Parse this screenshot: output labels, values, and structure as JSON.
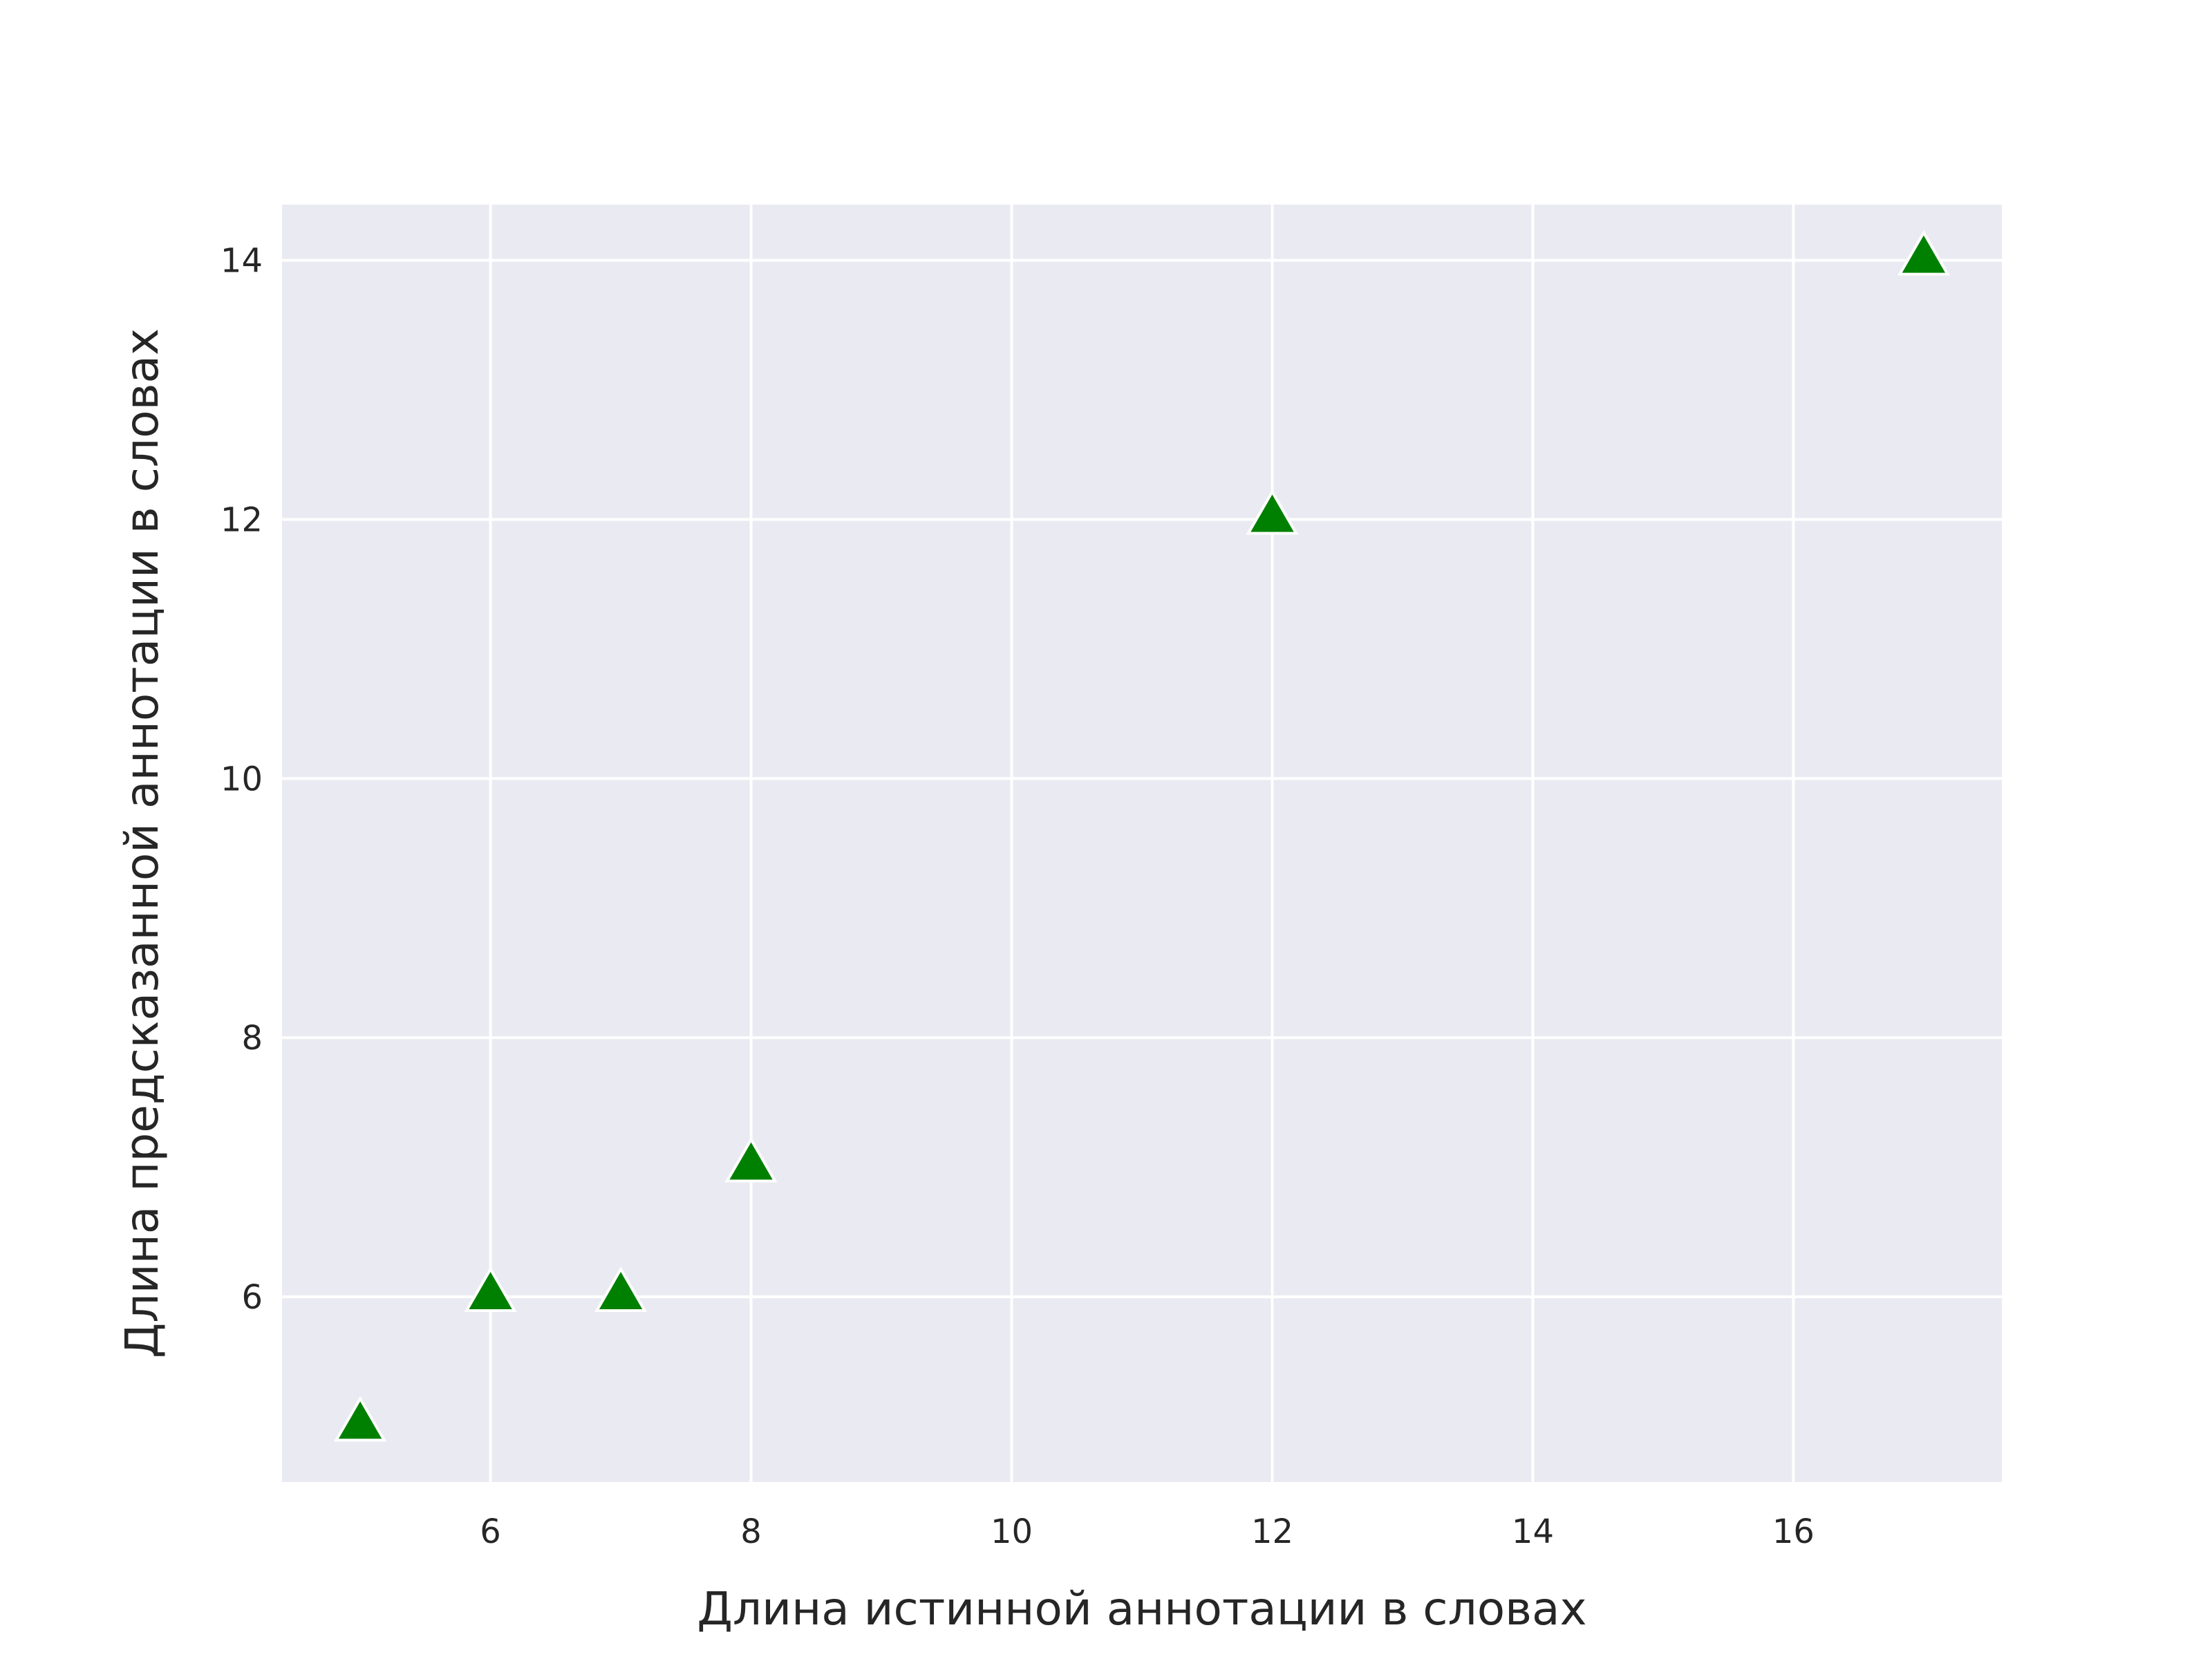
{
  "chart_data": {
    "type": "scatter",
    "title": "",
    "xlabel": "Длина истинной аннотации в словах",
    "ylabel": "Длина предсказанной аннотации в словах",
    "xlim": [
      4.4,
      17.6
    ],
    "ylim": [
      4.57,
      14.43
    ],
    "xticks": [
      6,
      8,
      10,
      12,
      14,
      16
    ],
    "yticks": [
      6,
      8,
      10,
      12,
      14
    ],
    "grid": true,
    "legend": "none",
    "marker": "triangle-up",
    "series": [
      {
        "color": "#008000",
        "edgecolor": "#ffffff",
        "points": [
          {
            "x": 5,
            "y": 5
          },
          {
            "x": 6,
            "y": 6
          },
          {
            "x": 7,
            "y": 6
          },
          {
            "x": 8,
            "y": 7
          },
          {
            "x": 12,
            "y": 12
          },
          {
            "x": 17,
            "y": 14
          }
        ]
      }
    ],
    "colors": {
      "plot_background": "#EAEAF2",
      "grid": "#FFFFFF",
      "text": "#262626"
    }
  }
}
